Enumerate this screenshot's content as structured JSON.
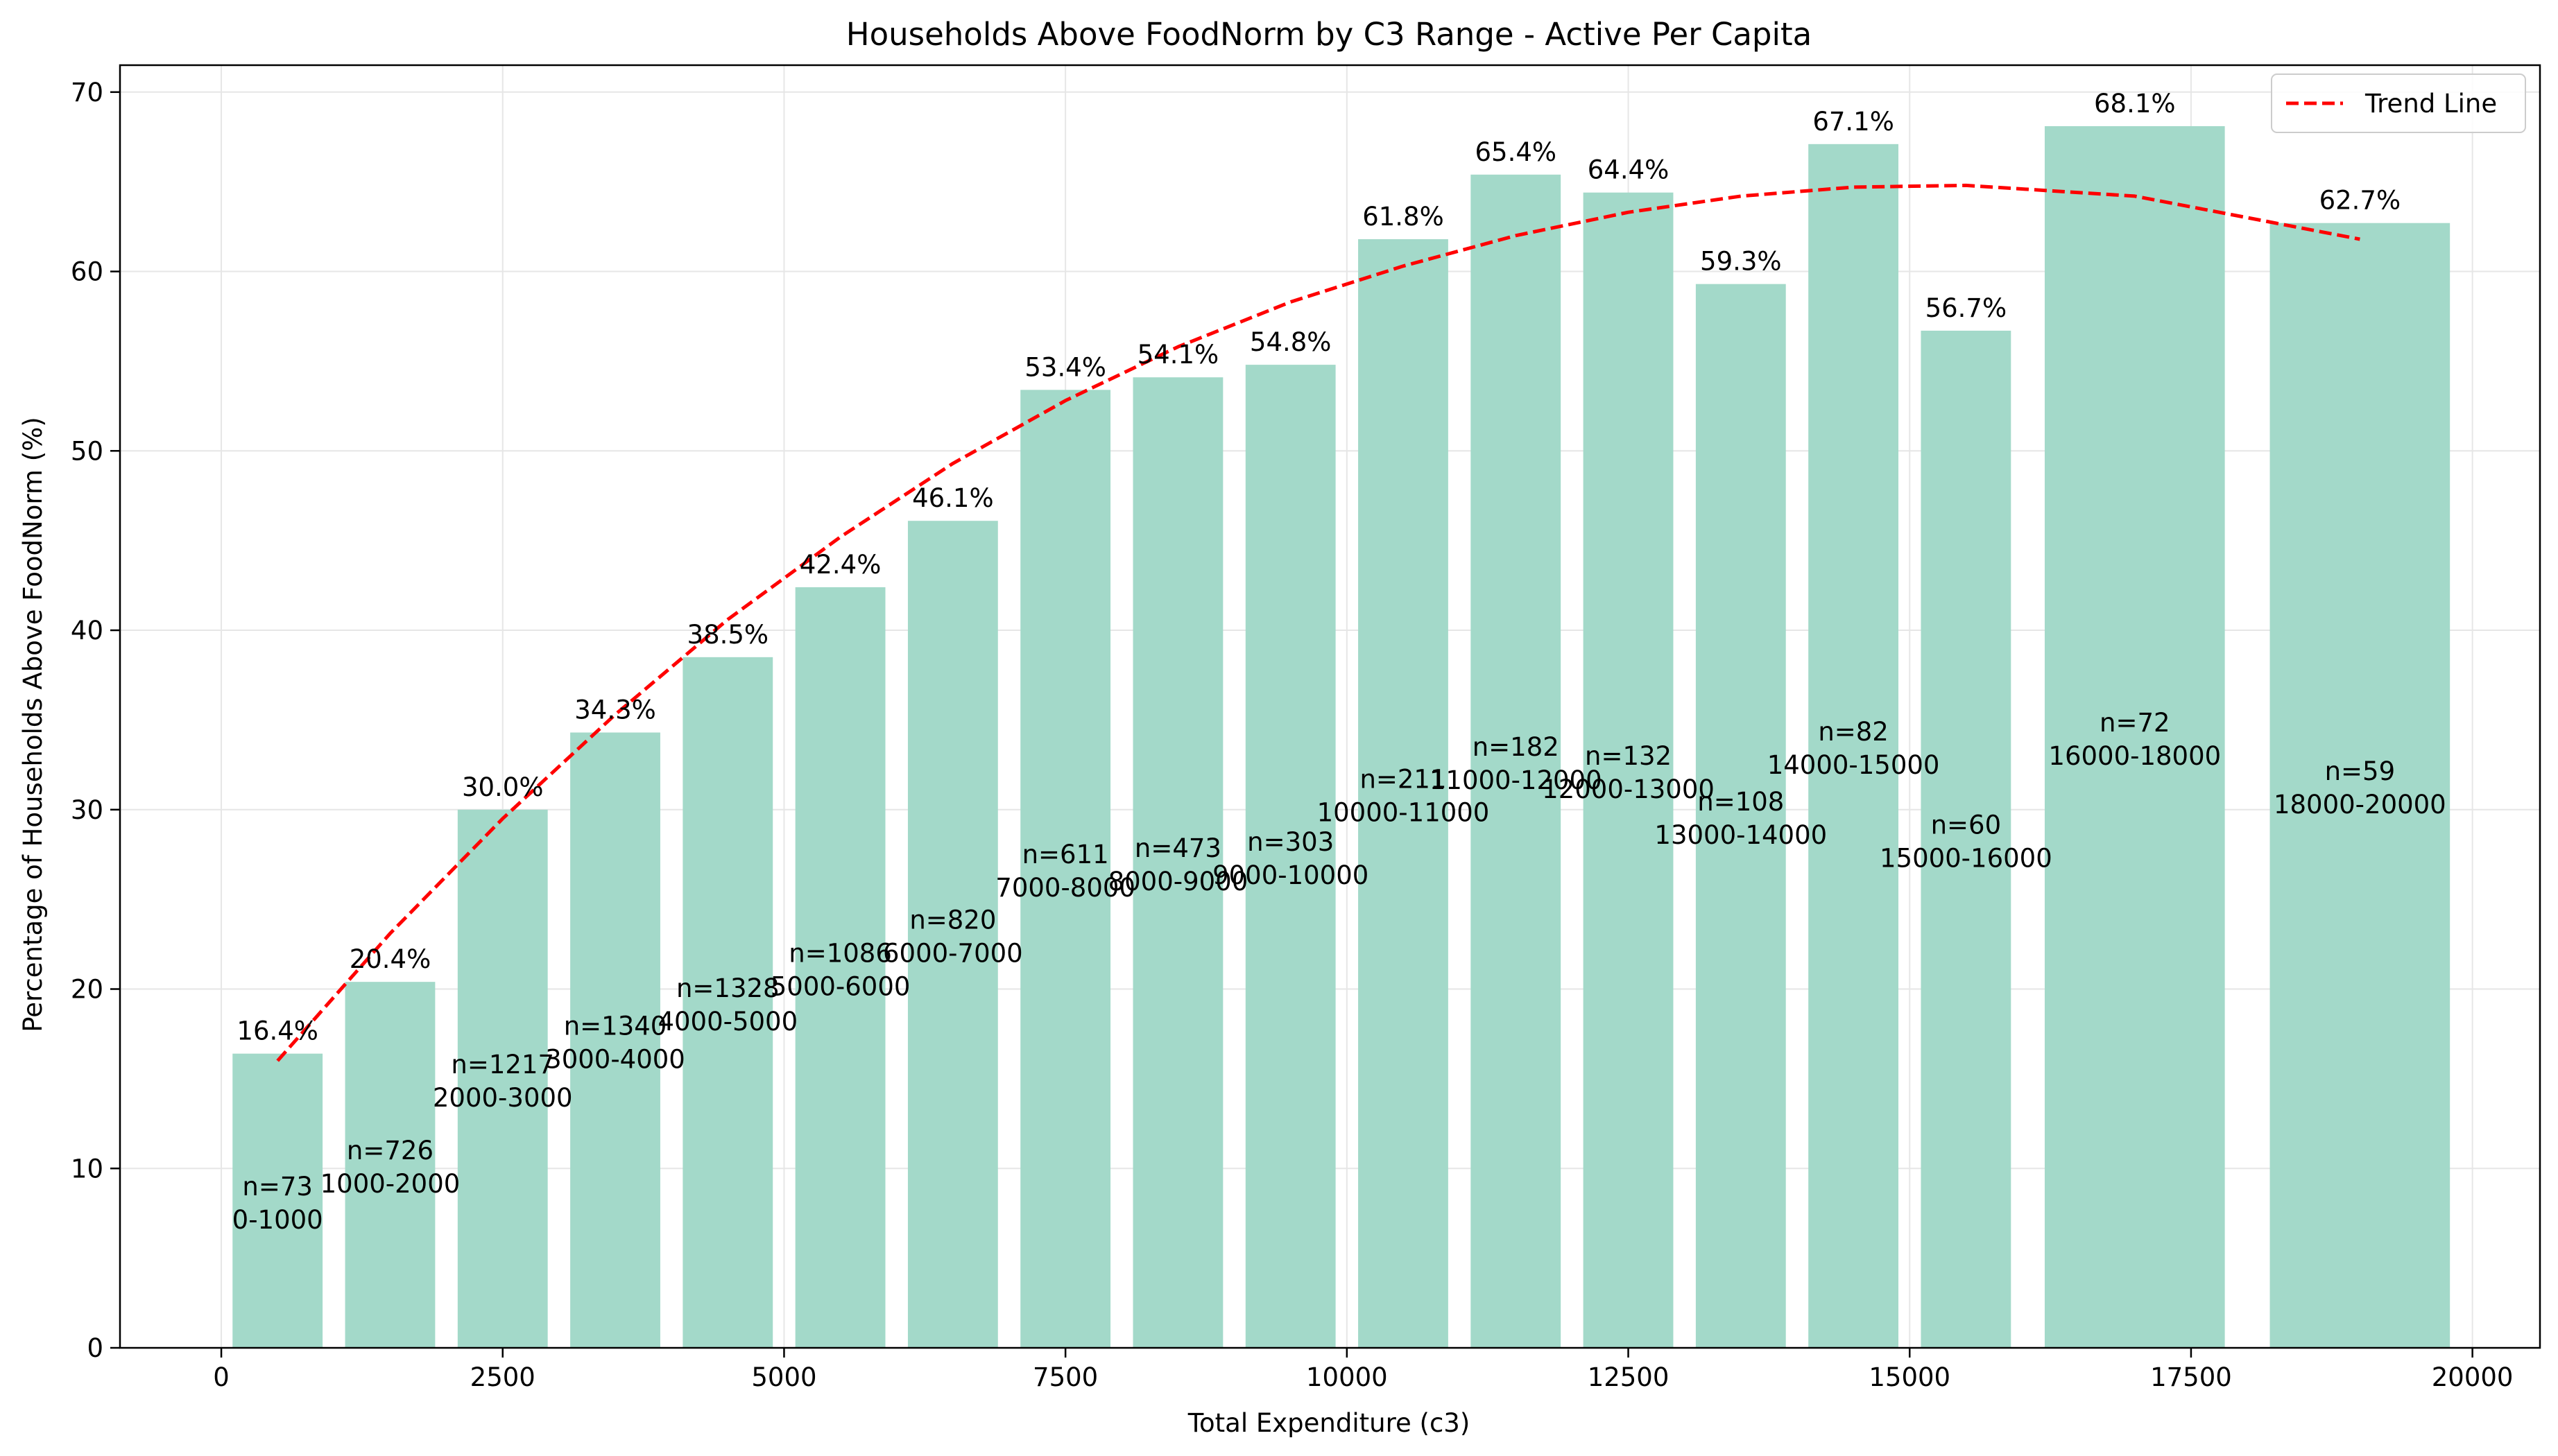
{
  "chart_data": {
    "type": "bar",
    "title": "Households Above FoodNorm by C3 Range - Active Per Capita",
    "xlabel": "Total Expenditure (c3)",
    "ylabel": "Percentage of Households Above FoodNorm (%)",
    "xlim": [
      -900,
      20600
    ],
    "ylim": [
      0,
      71.5
    ],
    "x_ticks": [
      0,
      2500,
      5000,
      7500,
      10000,
      12500,
      15000,
      17500,
      20000
    ],
    "y_ticks": [
      0,
      10,
      20,
      30,
      40,
      50,
      60,
      70
    ],
    "grid": true,
    "legend": {
      "position": "top-right",
      "entries": [
        "Trend Line"
      ]
    },
    "bar_color": "#a3d9c9",
    "trend_color": "#ff0000",
    "bars": [
      {
        "range": "0-1000",
        "start": 0,
        "end": 1000,
        "value": 16.4,
        "label": "16.4%",
        "n_label": "n=73"
      },
      {
        "range": "1000-2000",
        "start": 1000,
        "end": 2000,
        "value": 20.4,
        "label": "20.4%",
        "n_label": "n=726"
      },
      {
        "range": "2000-3000",
        "start": 2000,
        "end": 3000,
        "value": 30.0,
        "label": "30.0%",
        "n_label": "n=1217"
      },
      {
        "range": "3000-4000",
        "start": 3000,
        "end": 4000,
        "value": 34.3,
        "label": "34.3%",
        "n_label": "n=1340"
      },
      {
        "range": "4000-5000",
        "start": 4000,
        "end": 5000,
        "value": 38.5,
        "label": "38.5%",
        "n_label": "n=1328"
      },
      {
        "range": "5000-6000",
        "start": 5000,
        "end": 6000,
        "value": 42.4,
        "label": "42.4%",
        "n_label": "n=1086"
      },
      {
        "range": "6000-7000",
        "start": 6000,
        "end": 7000,
        "value": 46.1,
        "label": "46.1%",
        "n_label": "n=820"
      },
      {
        "range": "7000-8000",
        "start": 7000,
        "end": 8000,
        "value": 53.4,
        "label": "53.4%",
        "n_label": "n=611"
      },
      {
        "range": "8000-9000",
        "start": 8000,
        "end": 9000,
        "value": 54.1,
        "label": "54.1%",
        "n_label": "n=473"
      },
      {
        "range": "9000-10000",
        "start": 9000,
        "end": 10000,
        "value": 54.8,
        "label": "54.8%",
        "n_label": "n=303"
      },
      {
        "range": "10000-11000",
        "start": 10000,
        "end": 11000,
        "value": 61.8,
        "label": "61.8%",
        "n_label": "n=211"
      },
      {
        "range": "11000-12000",
        "start": 11000,
        "end": 12000,
        "value": 65.4,
        "label": "65.4%",
        "n_label": "n=182"
      },
      {
        "range": "12000-13000",
        "start": 12000,
        "end": 13000,
        "value": 64.4,
        "label": "64.4%",
        "n_label": "n=132"
      },
      {
        "range": "13000-14000",
        "start": 13000,
        "end": 14000,
        "value": 59.3,
        "label": "59.3%",
        "n_label": "n=108"
      },
      {
        "range": "14000-15000",
        "start": 14000,
        "end": 15000,
        "value": 67.1,
        "label": "67.1%",
        "n_label": "n=82"
      },
      {
        "range": "15000-16000",
        "start": 15000,
        "end": 16000,
        "value": 56.7,
        "label": "56.7%",
        "n_label": "n=60"
      },
      {
        "range": "16000-18000",
        "start": 16000,
        "end": 18000,
        "value": 68.1,
        "label": "68.1%",
        "n_label": "n=72"
      },
      {
        "range": "18000-20000",
        "start": 18000,
        "end": 20000,
        "value": 62.7,
        "label": "62.7%",
        "n_label": "n=59"
      }
    ],
    "trend_line": {
      "name": "Trend Line",
      "x": [
        500,
        1500,
        2500,
        3500,
        4500,
        5500,
        6500,
        7500,
        8500,
        9500,
        10500,
        11500,
        12500,
        13500,
        14500,
        15500,
        17000,
        19000
      ],
      "y": [
        16.0,
        23.1,
        29.5,
        35.3,
        40.6,
        45.2,
        49.3,
        52.8,
        55.8,
        58.3,
        60.3,
        62.0,
        63.3,
        64.2,
        64.7,
        64.8,
        64.2,
        61.8
      ]
    }
  }
}
